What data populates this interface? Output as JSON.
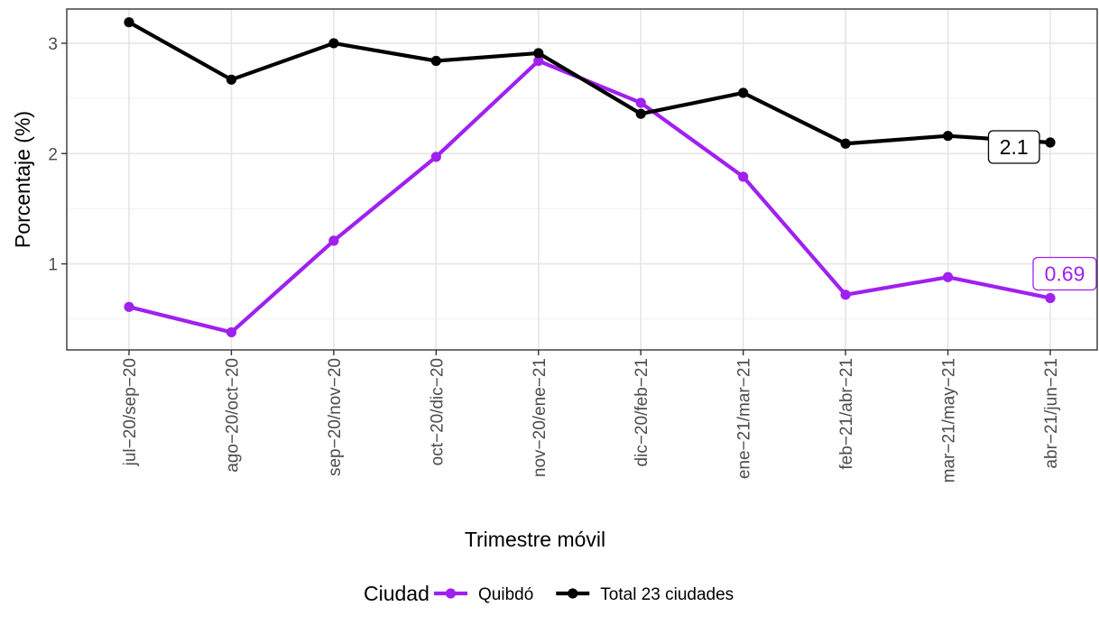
{
  "chart_data": {
    "type": "line",
    "xlabel": "Trimestre móvil",
    "ylabel": "Porcentaje (%)",
    "categories": [
      "jul−20/sep−20",
      "ago−20/oct−20",
      "sep−20/nov−20",
      "oct−20/dic−20",
      "nov−20/ene−21",
      "dic−20/feb−21",
      "ene−21/mar−21",
      "feb−21/abr−21",
      "mar−21/may−21",
      "abr−21/jun−21"
    ],
    "yticks": [
      "1",
      "2",
      "3"
    ],
    "ylim": [
      0.22,
      3.31
    ],
    "grid": true,
    "legend": {
      "title": "Ciudad",
      "position": "bottom"
    },
    "series": [
      {
        "name": "Quibdó",
        "color": "#A020F0",
        "values": [
          0.61,
          0.38,
          1.21,
          1.97,
          2.84,
          2.46,
          1.79,
          0.72,
          0.88,
          0.69
        ],
        "end_label": "0.69"
      },
      {
        "name": "Total 23 ciudades",
        "color": "#000000",
        "values": [
          3.19,
          2.67,
          3.0,
          2.84,
          2.91,
          2.36,
          2.55,
          2.09,
          2.16,
          2.1
        ],
        "end_label": "2.1"
      }
    ]
  }
}
